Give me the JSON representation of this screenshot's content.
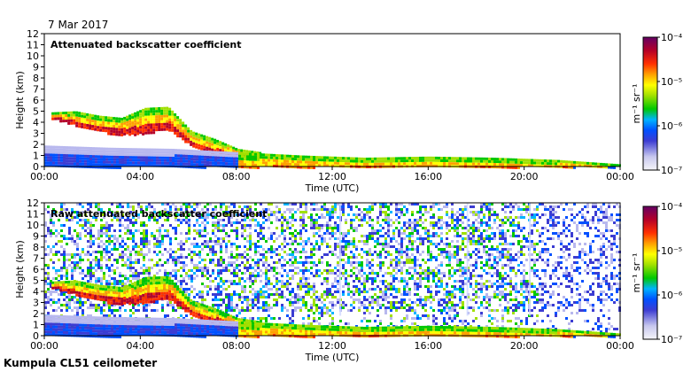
{
  "page": {
    "date_label": "7 Mar 2017",
    "footer_label": "Kumpula CL51 ceilometer"
  },
  "chart_data": [
    {
      "type": "heatmap",
      "title": "Attenuated backscatter coefficient",
      "xlabel": "Time (UTC)",
      "ylabel": "Height (km)",
      "x_ticks": [
        "00:00",
        "04:00",
        "08:00",
        "12:00",
        "16:00",
        "20:00",
        "00:00"
      ],
      "x_range_hours": [
        0,
        24
      ],
      "y_ticks": [
        0,
        1,
        2,
        3,
        4,
        5,
        6,
        7,
        8,
        9,
        10,
        11,
        12
      ],
      "ylim": [
        0,
        12
      ],
      "colorbar": {
        "label": "m⁻¹ sr⁻¹",
        "scale": "log",
        "ticks": [
          "10⁻⁷",
          "10⁻⁶",
          "10⁻⁵",
          "10⁻⁴"
        ]
      },
      "features": [
        {
          "name": "elevated aerosol layer",
          "start_hour": 0.3,
          "end_hour": 9.0,
          "top_km": [
            4.9,
            5.0,
            4.6,
            4.4,
            5.3,
            5.4,
            3.2,
            2.5,
            1.6,
            1.3
          ],
          "bottom_km": [
            4.4,
            3.8,
            3.2,
            2.9,
            3.0,
            3.4,
            1.9,
            1.3,
            0.9,
            0.7
          ]
        },
        {
          "name": "boundary layer",
          "start_hour": 0,
          "end_hour": 24,
          "top_km": [
            1.9,
            1.7,
            1.6,
            1.3,
            1.0,
            0.8,
            0.9,
            0.8,
            0.6,
            0.2
          ],
          "bottom_km": [
            0,
            0,
            0,
            0,
            0,
            0,
            0,
            0,
            0,
            0
          ]
        }
      ]
    },
    {
      "type": "heatmap",
      "title": "Raw attenuated backscatter coefficient",
      "xlabel": "Time (UTC)",
      "ylabel": "Height (km)",
      "x_ticks": [
        "00:00",
        "04:00",
        "08:00",
        "12:00",
        "16:00",
        "20:00",
        "00:00"
      ],
      "x_range_hours": [
        0,
        24
      ],
      "y_ticks": [
        0,
        1,
        2,
        3,
        4,
        5,
        6,
        7,
        8,
        9,
        10,
        11,
        12
      ],
      "ylim": [
        0,
        12
      ],
      "colorbar": {
        "label": "m⁻¹ sr⁻¹",
        "scale": "log",
        "ticks": [
          "10⁻⁷",
          "10⁻⁶",
          "10⁻⁵",
          "10⁻⁴"
        ]
      },
      "features": [
        {
          "name": "noisy background",
          "start_hour": 0,
          "end_hour": 24,
          "top_km": [
            12
          ],
          "bottom_km": [
            2
          ]
        },
        {
          "name": "elevated aerosol layer",
          "start_hour": 0.3,
          "end_hour": 9.0,
          "top_km": [
            4.9,
            5.0,
            4.6,
            4.4,
            5.3,
            5.4,
            3.2,
            2.5,
            1.6,
            1.3
          ],
          "bottom_km": [
            4.4,
            3.8,
            3.2,
            2.9,
            3.0,
            3.4,
            1.9,
            1.3,
            0.9,
            0.7
          ]
        },
        {
          "name": "boundary layer",
          "start_hour": 0,
          "end_hour": 24,
          "top_km": [
            1.9,
            1.7,
            1.6,
            1.3,
            1.0,
            0.8,
            0.9,
            0.8,
            0.6,
            0.2
          ],
          "bottom_km": [
            0,
            0,
            0,
            0,
            0,
            0,
            0,
            0,
            0,
            0
          ]
        }
      ]
    }
  ]
}
